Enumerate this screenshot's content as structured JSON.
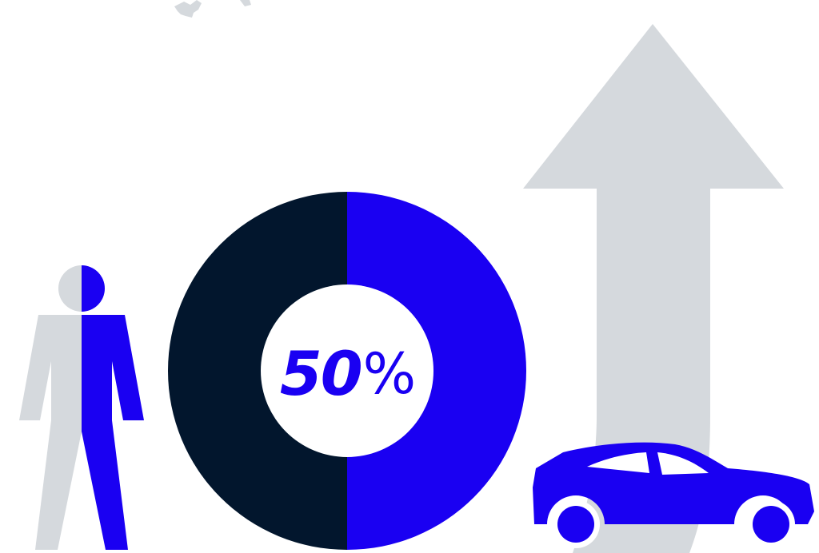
{
  "infographic": {
    "percentage": {
      "value": "50",
      "unit": "%",
      "fraction": 0.5
    },
    "icons": {
      "person": "person-icon",
      "donut": "donut-chart",
      "arrow": "up-arrow-icon",
      "car": "car-icon",
      "map": "map-fragment"
    },
    "colors": {
      "accent_blue": "#1a00f2",
      "dark_navy": "#02162d",
      "light_grey": "#d5d9dd",
      "background": "#ffffff"
    }
  }
}
